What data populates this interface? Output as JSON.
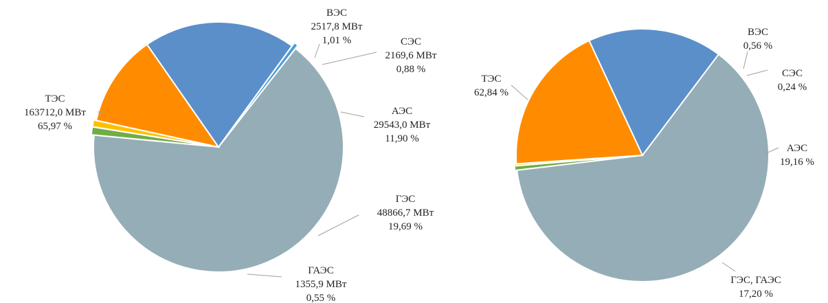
{
  "chart_data": [
    {
      "type": "pie",
      "title": "",
      "slices": [
        {
          "name": "ТЭС",
          "value_text": "163712,0 МВт",
          "pct_text": "65,97 %",
          "value": 65.97,
          "color": "#95adb6"
        },
        {
          "name": "ВЭС",
          "value_text": "2517,8 МВт",
          "pct_text": "1,01 %",
          "value": 1.01,
          "color": "#70ad47"
        },
        {
          "name": "СЭС",
          "value_text": "2169,6 МВт",
          "pct_text": "0,88 %",
          "value": 0.88,
          "color": "#ffc000"
        },
        {
          "name": "АЭС",
          "value_text": "29543,0 МВт",
          "pct_text": "11,90 %",
          "value": 11.9,
          "color": "#ff8c00"
        },
        {
          "name": "ГЭС",
          "value_text": "48866,7 МВт",
          "pct_text": "19,69 %",
          "value": 19.69,
          "color": "#5b8fc9"
        },
        {
          "name": "ГАЭС",
          "value_text": "1355,9 МВт",
          "pct_text": "0,55 %",
          "value": 0.55,
          "color": "#4a9fd8"
        }
      ]
    },
    {
      "type": "pie",
      "title": "",
      "slices": [
        {
          "name": "ТЭС",
          "value_text": "",
          "pct_text": "62,84 %",
          "value": 62.84,
          "color": "#95adb6"
        },
        {
          "name": "ВЭС",
          "value_text": "",
          "pct_text": "0,56 %",
          "value": 0.56,
          "color": "#70ad47"
        },
        {
          "name": "СЭС",
          "value_text": "",
          "pct_text": "0,24 %",
          "value": 0.24,
          "color": "#ffc000"
        },
        {
          "name": "АЭС",
          "value_text": "",
          "pct_text": "19,16 %",
          "value": 19.16,
          "color": "#ff8c00"
        },
        {
          "name": "ГЭС, ГАЭС",
          "value_text": "",
          "pct_text": "17,20 %",
          "value": 17.2,
          "color": "#5b8fc9"
        }
      ]
    }
  ]
}
